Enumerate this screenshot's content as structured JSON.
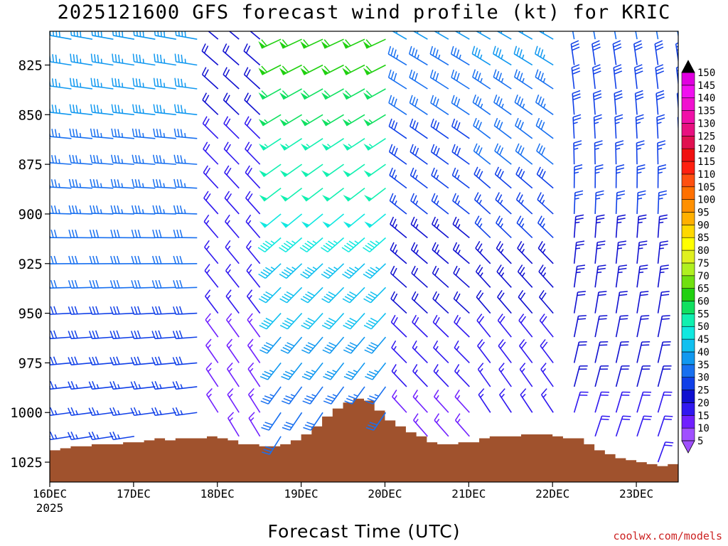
{
  "chart_data": {
    "type": "wind-profile",
    "title": "2025121600 GFS forecast wind profile (kt) for KRIC",
    "xlabel": "Forecast Time (UTC)",
    "credit": "coolwx.com/models",
    "y_axis": {
      "scale": "pressure (hPa), increasing downward",
      "range": [
        808,
        1035
      ],
      "ticks": [
        825,
        850,
        875,
        900,
        925,
        950,
        975,
        1000,
        1025
      ]
    },
    "x_axis": {
      "range_hours": [
        0,
        180
      ],
      "tick_hours": [
        0,
        24,
        48,
        72,
        96,
        120,
        144,
        168
      ],
      "tick_labels": [
        "16DEC",
        "17DEC",
        "18DEC",
        "19DEC",
        "20DEC",
        "21DEC",
        "22DEC",
        "23DEC"
      ],
      "year_label": "2025"
    },
    "colorbar": {
      "unit": "kt",
      "levels": [
        5,
        10,
        15,
        20,
        25,
        30,
        35,
        40,
        45,
        50,
        55,
        60,
        65,
        70,
        75,
        80,
        85,
        90,
        95,
        100,
        105,
        110,
        115,
        120,
        125,
        130,
        135,
        140,
        145,
        150
      ],
      "colors": [
        "#a050ff",
        "#7020ff",
        "#3018f0",
        "#1010d0",
        "#1040e8",
        "#1870f0",
        "#1098f0",
        "#10c0f0",
        "#10e8e0",
        "#10f0b0",
        "#10e060",
        "#20d010",
        "#70e010",
        "#b0f020",
        "#e0f020",
        "#ffff00",
        "#ffd800",
        "#ffb000",
        "#ff9000",
        "#ff7000",
        "#ff5010",
        "#ff2010",
        "#f01010",
        "#e01050",
        "#e81080",
        "#f010a8",
        "#f010d0",
        "#f010f0",
        "#e000e0"
      ]
    },
    "terrain": {
      "color": "#a0522d",
      "surface_pressure_points": [
        [
          0,
          1019
        ],
        [
          3,
          1018
        ],
        [
          6,
          1017
        ],
        [
          9,
          1017
        ],
        [
          12,
          1016
        ],
        [
          15,
          1016
        ],
        [
          18,
          1016
        ],
        [
          21,
          1015
        ],
        [
          24,
          1015
        ],
        [
          27,
          1014
        ],
        [
          30,
          1013
        ],
        [
          33,
          1014
        ],
        [
          36,
          1013
        ],
        [
          39,
          1013
        ],
        [
          42,
          1013
        ],
        [
          45,
          1012
        ],
        [
          48,
          1013
        ],
        [
          51,
          1014
        ],
        [
          54,
          1016
        ],
        [
          57,
          1016
        ],
        [
          60,
          1017
        ],
        [
          63,
          1017
        ],
        [
          66,
          1016
        ],
        [
          69,
          1014
        ],
        [
          72,
          1011
        ],
        [
          75,
          1007
        ],
        [
          78,
          1002
        ],
        [
          81,
          998
        ],
        [
          84,
          995
        ],
        [
          87,
          993
        ],
        [
          90,
          994
        ],
        [
          93,
          999
        ],
        [
          96,
          1004
        ],
        [
          99,
          1007
        ],
        [
          102,
          1010
        ],
        [
          105,
          1012
        ],
        [
          108,
          1015
        ],
        [
          111,
          1016
        ],
        [
          114,
          1016
        ],
        [
          117,
          1015
        ],
        [
          120,
          1015
        ],
        [
          123,
          1013
        ],
        [
          126,
          1012
        ],
        [
          129,
          1012
        ],
        [
          132,
          1012
        ],
        [
          135,
          1011
        ],
        [
          138,
          1011
        ],
        [
          141,
          1011
        ],
        [
          144,
          1012
        ],
        [
          147,
          1013
        ],
        [
          150,
          1013
        ],
        [
          153,
          1016
        ],
        [
          156,
          1019
        ],
        [
          159,
          1021
        ],
        [
          162,
          1023
        ],
        [
          165,
          1024
        ],
        [
          168,
          1025
        ],
        [
          171,
          1026
        ],
        [
          174,
          1027
        ],
        [
          177,
          1026
        ],
        [
          180,
          1026
        ]
      ]
    },
    "wind_profile": {
      "levels_hpa": [
        812,
        825,
        837,
        850,
        862,
        875,
        887,
        900,
        912,
        925,
        937,
        950,
        962,
        975,
        987,
        1000,
        1012,
        1025
      ],
      "time_step_hours": 6,
      "segments": [
        {
          "hours": [
            0,
            6,
            12,
            18,
            24,
            30,
            36,
            42
          ],
          "top": {
            "dir": 280,
            "spd": 38
          },
          "bottom": {
            "dir": 260,
            "spd": 25
          }
        },
        {
          "hours": [
            48,
            54,
            60
          ],
          "top": {
            "dir": 310,
            "spd": 22
          },
          "bottom": {
            "dir": 330,
            "spd": 12
          }
        },
        {
          "hours": [
            66,
            72,
            78,
            84,
            90,
            96
          ],
          "top": {
            "dir": 245,
            "spd": 62
          },
          "bottom": {
            "dir": 210,
            "spd": 28
          }
        },
        {
          "hours": [
            102,
            108,
            114,
            120
          ],
          "top": {
            "dir": 300,
            "spd": 35
          },
          "bottom": {
            "dir": 320,
            "spd": 12
          }
        },
        {
          "hours": [
            126,
            132,
            138,
            144
          ],
          "top": {
            "dir": 300,
            "spd": 38
          },
          "bottom": {
            "dir": 330,
            "spd": 12
          }
        },
        {
          "hours": [
            150,
            156,
            162,
            168,
            174,
            180
          ],
          "top": {
            "dir": 350,
            "spd": 30
          },
          "bottom": {
            "dir": 20,
            "spd": 18
          }
        }
      ]
    }
  }
}
